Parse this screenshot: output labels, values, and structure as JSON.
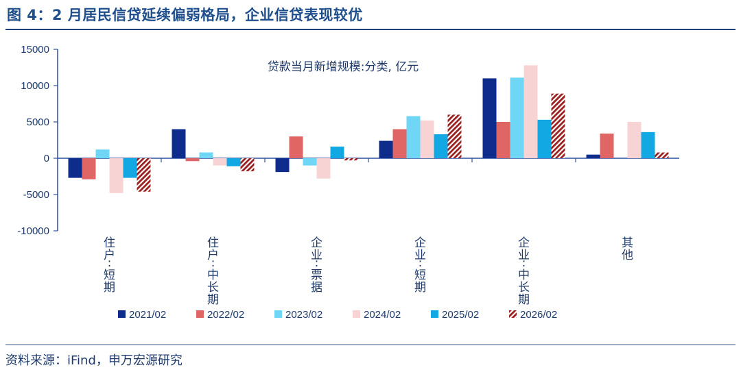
{
  "figure": {
    "title": "图 4：2 月居民信贷延续偏弱格局，企业信贷表现较优",
    "source": "资料来源：iFind，申万宏源研究"
  },
  "chart_data": {
    "type": "bar",
    "title": "贷款当月新增规模:分类, 亿元",
    "xlabel": "",
    "ylabel": "",
    "ylim": [
      -10000,
      15000
    ],
    "yticks": [
      15000,
      10000,
      5000,
      0,
      -5000,
      -10000
    ],
    "grid": false,
    "legend_position": "bottom",
    "categories": [
      "住户:短期",
      "住户:中长期",
      "企业:票据",
      "企业:短期",
      "企业:中长期",
      "其他"
    ],
    "series": [
      {
        "name": "2021/02",
        "color": "#0d2c8c",
        "pattern": "solid",
        "values": [
          -2700,
          4000,
          -1900,
          2400,
          11000,
          500
        ]
      },
      {
        "name": "2022/02",
        "color": "#e06666",
        "pattern": "solid",
        "values": [
          -2900,
          -400,
          3000,
          4000,
          5000,
          3400
        ]
      },
      {
        "name": "2023/02",
        "color": "#6fd6f5",
        "pattern": "solid",
        "values": [
          1200,
          800,
          -1000,
          5800,
          11100,
          0
        ]
      },
      {
        "name": "2024/02",
        "color": "#f8d3d3",
        "pattern": "solid",
        "values": [
          -4800,
          -1000,
          -2800,
          5200,
          12800,
          5000
        ]
      },
      {
        "name": "2025/02",
        "color": "#12a8e3",
        "pattern": "solid",
        "values": [
          -2700,
          -1100,
          1600,
          3300,
          5300,
          3600
        ]
      },
      {
        "name": "2026/02",
        "color": "#9a1f1f",
        "pattern": "hatch",
        "values": [
          -4600,
          -1800,
          -300,
          6000,
          8900,
          800
        ]
      }
    ]
  }
}
